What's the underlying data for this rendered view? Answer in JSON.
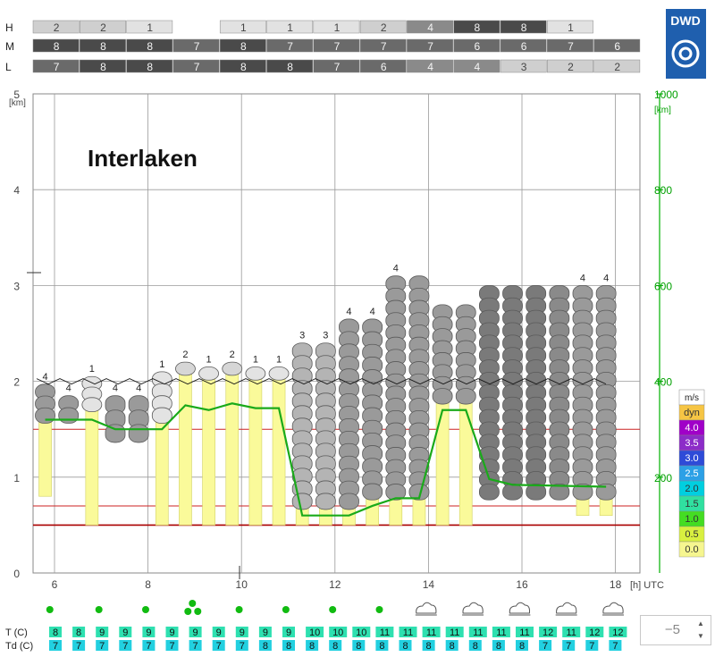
{
  "chart_data": {
    "type": "meteogram",
    "title": "Interlaken",
    "logo_text": "DWD",
    "left_axis": {
      "unit": "[km]",
      "ticks": [
        "0",
        "1",
        "2",
        "3",
        "4",
        "5"
      ],
      "ylim": [
        0,
        5
      ]
    },
    "right_axis": {
      "unit": "[km]",
      "ticks": [
        "200",
        "400",
        "600",
        "800",
        "1000"
      ],
      "color": "#00a000"
    },
    "x_axis": {
      "unit": "[h] UTC",
      "ticks": [
        "6",
        "8",
        "10",
        "12",
        "14",
        "16",
        "18"
      ],
      "xlim": [
        5.6,
        18.5
      ]
    },
    "cloud_cover_rows": [
      {
        "label": "H",
        "values": [
          2,
          2,
          1,
          null,
          1,
          1,
          1,
          2,
          4,
          8,
          8,
          1,
          null
        ]
      },
      {
        "label": "M",
        "values": [
          8,
          8,
          8,
          7,
          8,
          7,
          7,
          7,
          7,
          6,
          6,
          7,
          6
        ]
      },
      {
        "label": "L",
        "values": [
          7,
          8,
          8,
          7,
          8,
          8,
          7,
          6,
          4,
          4,
          3,
          2,
          2
        ]
      }
    ],
    "columns": [
      {
        "t": 5.8,
        "label": "4",
        "cloud_base_km": 1.6,
        "cloud_top_km": 1.97,
        "shade": "#9a9a9a",
        "bar_bottom_km": 0.8,
        "bar_top_km": 1.6
      },
      {
        "t": 6.3,
        "label": "4",
        "cloud_base_km": 1.6,
        "cloud_top_km": 1.85,
        "shade": "#9a9a9a",
        "bar_bottom_km": null,
        "bar_top_km": null
      },
      {
        "t": 6.8,
        "label": "1",
        "cloud_base_km": 1.72,
        "cloud_top_km": 2.05,
        "shade": "#e3e3e3",
        "bar_bottom_km": 0.5,
        "bar_top_km": 1.72
      },
      {
        "t": 7.3,
        "label": "4",
        "cloud_base_km": 1.4,
        "cloud_top_km": 1.85,
        "shade": "#9a9a9a",
        "bar_bottom_km": null,
        "bar_top_km": null
      },
      {
        "t": 7.8,
        "label": "4",
        "cloud_base_km": 1.4,
        "cloud_top_km": 1.85,
        "shade": "#9a9a9a",
        "bar_bottom_km": null,
        "bar_top_km": null
      },
      {
        "t": 8.3,
        "label": "1",
        "cloud_base_km": 1.6,
        "cloud_top_km": 2.1,
        "shade": "#e3e3e3",
        "bar_bottom_km": 0.5,
        "bar_top_km": 1.6
      },
      {
        "t": 8.8,
        "label": "2",
        "cloud_base_km": 2.1,
        "cloud_top_km": 2.2,
        "shade": "#d6d6d6",
        "bar_bottom_km": 0.5,
        "bar_top_km": 2.1
      },
      {
        "t": 9.3,
        "label": "1",
        "cloud_base_km": 2.05,
        "cloud_top_km": 2.15,
        "shade": "#e3e3e3",
        "bar_bottom_km": 0.5,
        "bar_top_km": 2.05
      },
      {
        "t": 9.8,
        "label": "2",
        "cloud_base_km": 2.1,
        "cloud_top_km": 2.2,
        "shade": "#d6d6d6",
        "bar_bottom_km": 0.5,
        "bar_top_km": 2.1
      },
      {
        "t": 10.3,
        "label": "1",
        "cloud_base_km": 2.05,
        "cloud_top_km": 2.15,
        "shade": "#e3e3e3",
        "bar_bottom_km": 0.5,
        "bar_top_km": 2.05
      },
      {
        "t": 10.8,
        "label": "1",
        "cloud_base_km": 2.05,
        "cloud_top_km": 2.15,
        "shade": "#e3e3e3",
        "bar_bottom_km": 0.5,
        "bar_top_km": 2.05
      },
      {
        "t": 11.3,
        "label": "3",
        "cloud_base_km": 0.7,
        "cloud_top_km": 2.4,
        "shade": "#b4b4b4",
        "bar_bottom_km": 0.5,
        "bar_top_km": 0.7
      },
      {
        "t": 11.8,
        "label": "3",
        "cloud_base_km": 0.7,
        "cloud_top_km": 2.4,
        "shade": "#b4b4b4",
        "bar_bottom_km": 0.5,
        "bar_top_km": 0.7
      },
      {
        "t": 12.3,
        "label": "4",
        "cloud_base_km": 0.7,
        "cloud_top_km": 2.65,
        "shade": "#9a9a9a",
        "bar_bottom_km": 0.5,
        "bar_top_km": 0.7
      },
      {
        "t": 12.8,
        "label": "4",
        "cloud_base_km": 0.8,
        "cloud_top_km": 2.65,
        "shade": "#9a9a9a",
        "bar_bottom_km": 0.5,
        "bar_top_km": 0.8
      },
      {
        "t": 13.3,
        "label": "4",
        "cloud_base_km": 0.8,
        "cloud_top_km": 3.1,
        "shade": "#9a9a9a",
        "bar_bottom_km": 0.5,
        "bar_top_km": 0.8
      },
      {
        "t": 13.8,
        "label": "",
        "cloud_base_km": 0.8,
        "cloud_top_km": 3.1,
        "shade": "#9a9a9a",
        "bar_bottom_km": 0.5,
        "bar_top_km": 0.8
      },
      {
        "t": 14.3,
        "label": "",
        "cloud_base_km": 1.8,
        "cloud_top_km": 2.8,
        "shade": "#9a9a9a",
        "bar_bottom_km": 0.5,
        "bar_top_km": 1.8
      },
      {
        "t": 14.8,
        "label": "",
        "cloud_base_km": 1.8,
        "cloud_top_km": 2.8,
        "shade": "#9a9a9a",
        "bar_bottom_km": 0.5,
        "bar_top_km": 1.8
      },
      {
        "t": 15.3,
        "label": "",
        "cloud_base_km": 0.8,
        "cloud_top_km": 3.0,
        "shade": "#7a7a7a",
        "bar_bottom_km": null,
        "bar_top_km": null
      },
      {
        "t": 15.8,
        "label": "",
        "cloud_base_km": 0.8,
        "cloud_top_km": 3.0,
        "shade": "#7a7a7a",
        "bar_bottom_km": null,
        "bar_top_km": null
      },
      {
        "t": 16.3,
        "label": "",
        "cloud_base_km": 0.8,
        "cloud_top_km": 3.0,
        "shade": "#7a7a7a",
        "bar_bottom_km": null,
        "bar_top_km": null
      },
      {
        "t": 16.8,
        "label": "",
        "cloud_base_km": 0.8,
        "cloud_top_km": 3.0,
        "shade": "#8a8a8a",
        "bar_bottom_km": null,
        "bar_top_km": null
      },
      {
        "t": 17.3,
        "label": "4",
        "cloud_base_km": 0.8,
        "cloud_top_km": 3.0,
        "shade": "#9a9a9a",
        "bar_bottom_km": 0.6,
        "bar_top_km": 0.8
      },
      {
        "t": 17.8,
        "label": "4",
        "cloud_base_km": 0.8,
        "cloud_top_km": 3.0,
        "shade": "#9a9a9a",
        "bar_bottom_km": 0.6,
        "bar_top_km": 0.8
      }
    ],
    "green_line": [
      {
        "t": 5.8,
        "km": 1.6
      },
      {
        "t": 6.8,
        "km": 1.6
      },
      {
        "t": 7.3,
        "km": 1.5
      },
      {
        "t": 8.3,
        "km": 1.5
      },
      {
        "t": 8.8,
        "km": 1.75
      },
      {
        "t": 9.3,
        "km": 1.7
      },
      {
        "t": 9.8,
        "km": 1.77
      },
      {
        "t": 10.3,
        "km": 1.72
      },
      {
        "t": 10.8,
        "km": 1.72
      },
      {
        "t": 11.3,
        "km": 0.6
      },
      {
        "t": 12.3,
        "km": 0.6
      },
      {
        "t": 12.8,
        "km": 0.7
      },
      {
        "t": 13.3,
        "km": 0.78
      },
      {
        "t": 13.8,
        "km": 0.78
      },
      {
        "t": 14.3,
        "km": 1.7
      },
      {
        "t": 14.8,
        "km": 1.7
      },
      {
        "t": 15.3,
        "km": 0.98
      },
      {
        "t": 15.8,
        "km": 0.92
      },
      {
        "t": 17.8,
        "km": 0.9
      }
    ],
    "red_lines_km": [
      1.5,
      0.7,
      0.5
    ],
    "wind_line_km": 2.0,
    "wind_legend": {
      "unit": "m/s",
      "items": [
        {
          "label": "dyn",
          "color": "#f6c544"
        },
        {
          "label": "4.0",
          "color": "#a000c8"
        },
        {
          "label": "3.5",
          "color": "#8c2cc8"
        },
        {
          "label": "3.0",
          "color": "#2e4bd8"
        },
        {
          "label": "2.5",
          "color": "#2ca0e6"
        },
        {
          "label": "2.0",
          "color": "#00cfe0"
        },
        {
          "label": "1.5",
          "color": "#30e0a0"
        },
        {
          "label": "1.0",
          "color": "#44dd22"
        },
        {
          "label": "0.5",
          "color": "#d8f040"
        },
        {
          "label": "0.0",
          "color": "#f6f690"
        }
      ]
    },
    "weather_symbols": [
      {
        "t": 5.9,
        "type": "dot"
      },
      {
        "t": 6.95,
        "type": "dot"
      },
      {
        "t": 7.95,
        "type": "dot"
      },
      {
        "t": 8.95,
        "type": "dots"
      },
      {
        "t": 9.95,
        "type": "dot"
      },
      {
        "t": 10.95,
        "type": "dot"
      },
      {
        "t": 11.95,
        "type": "dot"
      },
      {
        "t": 12.95,
        "type": "dot"
      },
      {
        "t": 13.95,
        "type": "cloud"
      },
      {
        "t": 14.95,
        "type": "cloud"
      },
      {
        "t": 15.95,
        "type": "cloud"
      },
      {
        "t": 16.95,
        "type": "cloud"
      },
      {
        "t": 17.95,
        "type": "cloud"
      }
    ],
    "temperature_rows": [
      {
        "label": "T  (C)",
        "values": [
          8,
          8,
          9,
          9,
          9,
          9,
          9,
          9,
          9,
          9,
          9,
          10,
          10,
          10,
          11,
          11,
          11,
          11,
          11,
          11,
          11,
          12,
          11,
          12,
          12
        ]
      },
      {
        "label": "Td (C)",
        "values": [
          7,
          7,
          7,
          7,
          7,
          7,
          7,
          7,
          7,
          8,
          8,
          8,
          8,
          8,
          8,
          8,
          8,
          8,
          8,
          8,
          8,
          7,
          7,
          7,
          7
        ]
      }
    ]
  },
  "control": {
    "offset_value": "−5",
    "up": "▲",
    "down": "▼"
  }
}
